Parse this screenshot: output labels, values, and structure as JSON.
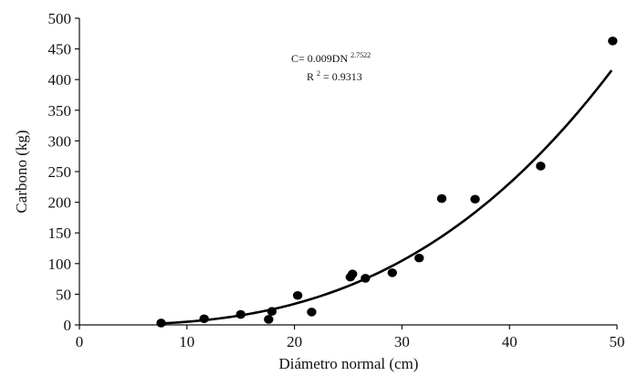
{
  "chart_data": {
    "type": "scatter",
    "title": "",
    "xlabel": "Diámetro normal (cm)",
    "ylabel": "Carbono (kg)",
    "xlim": [
      0,
      50
    ],
    "ylim": [
      0,
      500
    ],
    "xticks": [
      "0",
      "10",
      "20",
      "30",
      "40",
      "50"
    ],
    "yticks": [
      "0",
      "50",
      "100",
      "150",
      "200",
      "250",
      "300",
      "350",
      "400",
      "450",
      "500"
    ],
    "grid": false,
    "legend": "none",
    "points": [
      {
        "x": 7.6,
        "y": 3
      },
      {
        "x": 11.6,
        "y": 10
      },
      {
        "x": 15.0,
        "y": 17
      },
      {
        "x": 17.6,
        "y": 9
      },
      {
        "x": 17.9,
        "y": 22
      },
      {
        "x": 20.3,
        "y": 48
      },
      {
        "x": 21.6,
        "y": 21
      },
      {
        "x": 25.2,
        "y": 78
      },
      {
        "x": 25.4,
        "y": 83
      },
      {
        "x": 26.6,
        "y": 76
      },
      {
        "x": 29.1,
        "y": 85
      },
      {
        "x": 31.6,
        "y": 109
      },
      {
        "x": 33.7,
        "y": 206
      },
      {
        "x": 36.8,
        "y": 205
      },
      {
        "x": 42.9,
        "y": 259
      },
      {
        "x": 49.6,
        "y": 463
      }
    ],
    "fit": {
      "a": 0.009,
      "b": 2.7522,
      "x_range": [
        7.5,
        49.5
      ]
    },
    "annotation": {
      "equation_prefix": "C= 0.009DN",
      "equation_exponent": "2.7522",
      "r2_prefix": "R",
      "r2_sup": "2",
      "r2_suffix": "= 0.9313"
    }
  }
}
